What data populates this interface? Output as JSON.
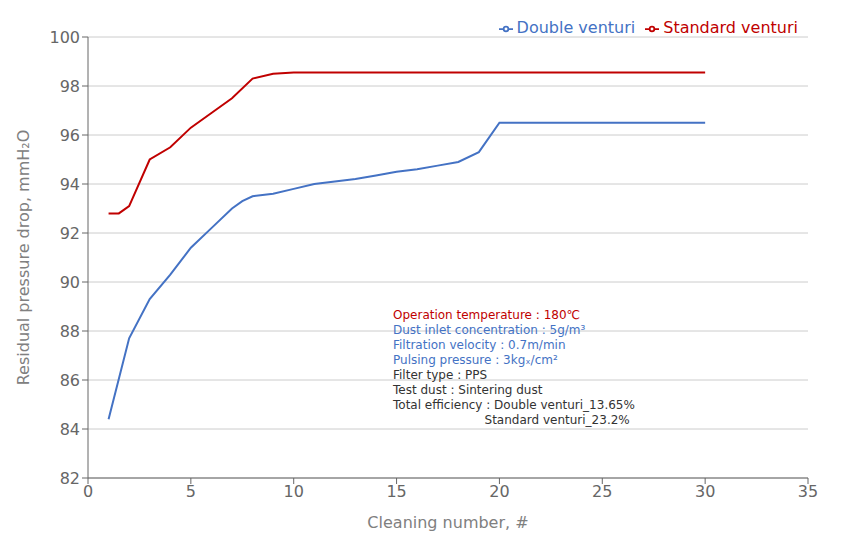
{
  "chart_data": {
    "type": "line",
    "xlabel": "Cleaning number, #",
    "ylabel": "Residual pressure drop, mmH₂O",
    "xlim": [
      0,
      35
    ],
    "ylim": [
      82,
      100
    ],
    "xticks": [
      0,
      5,
      10,
      15,
      20,
      25,
      30,
      35
    ],
    "yticks": [
      82,
      84,
      86,
      88,
      90,
      92,
      94,
      96,
      98,
      100
    ],
    "grid": "y",
    "legend": "upper right",
    "series": [
      {
        "name": "Double venturi",
        "color": "#4472C4",
        "x": [
          1,
          2,
          3,
          4,
          5,
          6,
          7,
          7.5,
          8,
          9,
          10,
          11,
          12,
          13,
          14,
          15,
          16,
          17,
          18,
          19,
          20,
          21,
          22,
          23,
          24,
          25,
          26,
          27,
          28,
          29,
          30
        ],
        "values": [
          84.4,
          87.7,
          89.3,
          90.3,
          91.4,
          92.2,
          93.0,
          93.3,
          93.5,
          93.6,
          93.8,
          94.0,
          94.1,
          94.2,
          94.35,
          94.5,
          94.6,
          94.75,
          94.9,
          95.3,
          96.5,
          96.5,
          96.5,
          96.5,
          96.5,
          96.5,
          96.5,
          96.5,
          96.5,
          96.5,
          96.5
        ]
      },
      {
        "name": "Standard venturi",
        "color": "#C00000",
        "x": [
          1,
          1.5,
          2,
          3,
          4,
          5,
          6,
          7,
          8,
          9,
          10,
          12,
          14,
          20,
          30
        ],
        "values": [
          92.8,
          92.8,
          93.1,
          95.0,
          95.5,
          96.3,
          96.9,
          97.5,
          98.3,
          98.5,
          98.55,
          98.55,
          98.55,
          98.55,
          98.55
        ]
      }
    ],
    "annotations": [
      {
        "text": "Operation temperature : 180℃",
        "color": "#C00000"
      },
      {
        "text": "Dust inlet concentration : 5g/m³",
        "color": "#4472C4"
      },
      {
        "text": "Filtration velocity : 0.7m/min",
        "color": "#4472C4"
      },
      {
        "text": "Pulsing pressure : 3kgₓ/cm²",
        "color": "#4472C4"
      },
      {
        "text": "Filter type : PPS",
        "color": "#333333"
      },
      {
        "text": "Test dust : Sintering dust",
        "color": "#333333"
      },
      {
        "text": "Total efficiency : Double venturi_13.65%",
        "color": "#333333"
      },
      {
        "text": "                        Standard venturi_23.2%",
        "color": "#333333"
      }
    ]
  }
}
